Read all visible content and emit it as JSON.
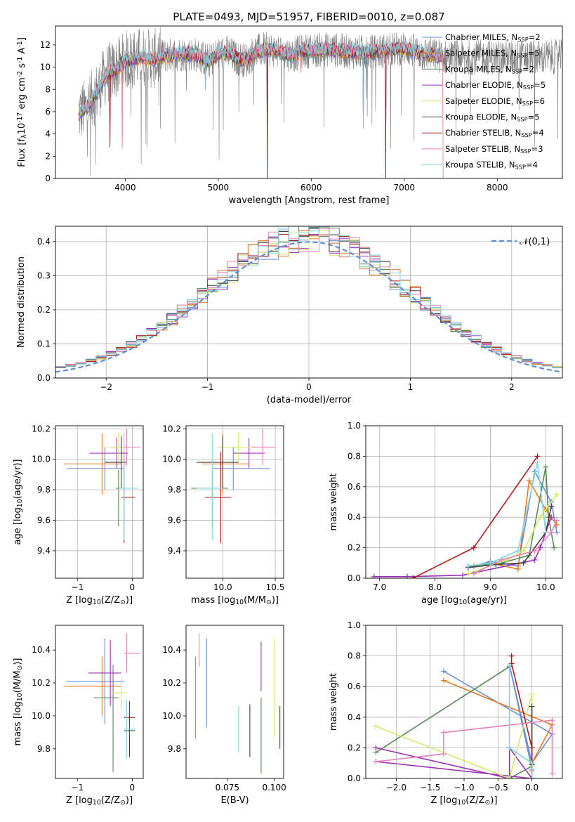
{
  "figure": {
    "title": "PLATE=0493, MJD=51957, FIBERID=0010, z=0.087"
  },
  "series": [
    {
      "name": "Chabrier MILES, N$_{SSP}$=2",
      "color": "#6a8fd8"
    },
    {
      "name": "Salpeter MILES, N$_{SSP}$=5",
      "color": "#e8781e"
    },
    {
      "name": "Kroupa MILES, N$_{SSP}$=2",
      "color": "#5a8a5a"
    },
    {
      "name": "Chabrier ELODIE, N$_{SSP}$=5",
      "color": "#9b30b8"
    },
    {
      "name": "Salpeter ELODIE, N$_{SSP}$=6",
      "color": "#d4e86a"
    },
    {
      "name": "Kroupa ELODIE, N$_{SSP}$=5",
      "color": "#404040"
    },
    {
      "name": "Chabrier STELIB, N$_{SSP}$=4",
      "color": "#b01c1c"
    },
    {
      "name": "Salpeter STELIB, N$_{SSP}$=3",
      "color": "#e880b8"
    },
    {
      "name": "Kroupa STELIB, N$_{SSP}$=4",
      "color": "#80d8e0"
    }
  ],
  "chart_data": [
    {
      "id": "spectrum",
      "type": "line",
      "title": "PLATE=0493, MJD=51957, FIBERID=0010, z=0.087",
      "xlabel": "wavelength [Angstrom, rest frame]",
      "ylabel": "Flux [f$_\\lambda$10$^{-17}$ erg cm$^{-2}$ s$^{-1}$ A$^{-1}$]",
      "xlim": [
        3250,
        8700
      ],
      "ylim": [
        0,
        13.7
      ],
      "xticks": [
        4000,
        5000,
        6000,
        7000,
        8000
      ],
      "yticks": [
        0,
        2,
        4,
        6,
        8,
        10,
        12
      ],
      "legend": {
        "placement": "right",
        "entries": [
          "Chabrier MILES, N$_{SSP}$=2",
          "Salpeter MILES, N$_{SSP}$=5",
          "Kroupa MILES, N$_{SSP}$=2",
          "Chabrier ELODIE, N$_{SSP}$=5",
          "Salpeter ELODIE, N$_{SSP}$=6",
          "Kroupa ELODIE, N$_{SSP}$=5",
          "Chabrier STELIB, N$_{SSP}$=4",
          "Salpeter STELIB, N$_{SSP}$=3",
          "Kroupa STELIB, N$_{SSP}$=4"
        ]
      },
      "observed_color": "#808080",
      "model_envelope": {
        "x": [
          3500,
          3600,
          3700,
          3800,
          3900,
          4000,
          4100,
          4200,
          4300,
          4400,
          4500,
          4600,
          4700,
          4800,
          4900,
          5000,
          5100,
          5200,
          5300,
          5400,
          5500,
          5600,
          5700,
          5800,
          5900,
          6000,
          6200,
          6400,
          6600,
          6800,
          7000,
          7200,
          7400,
          7420
        ],
        "y": [
          5.8,
          6.5,
          7.8,
          9.4,
          9.8,
          10.6,
          10.8,
          10.9,
          10.7,
          11.0,
          11.1,
          11.2,
          11.2,
          11.0,
          10.5,
          11.2,
          11.3,
          10.8,
          10.6,
          11.4,
          11.6,
          11.5,
          11.3,
          11.1,
          11.4,
          11.5,
          11.6,
          11.4,
          11.3,
          11.5,
          11.7,
          11.2,
          11.0,
          10.9
        ]
      },
      "spikes": {
        "x": [
          3835,
          3970,
          4860,
          5530,
          5890,
          6560,
          6800,
          7420
        ],
        "y": [
          2.8,
          2.7,
          8.0,
          0,
          9.5,
          4.5,
          0,
          0
        ]
      }
    },
    {
      "id": "residuals",
      "type": "bar",
      "xlabel": "(data-model)/error",
      "ylabel": "Normed distribution",
      "xlim": [
        -2.5,
        2.5
      ],
      "ylim": [
        0,
        0.445
      ],
      "xticks": [
        -2,
        -1,
        0,
        1,
        2
      ],
      "yticks": [
        0.0,
        0.1,
        0.2,
        0.3,
        0.4
      ],
      "legend": {
        "placement": "top-right",
        "entries": [
          "$\\mathcal{N}(0,1)$"
        ]
      },
      "gaussian": {
        "mean": 0,
        "sigma": 1,
        "color": "#5b8fd6"
      },
      "bin_width": 0.1
    },
    {
      "id": "z-age",
      "type": "scatter",
      "xlabel": "Z [log$_{10}$(Z/Z$_\\odot$)]",
      "ylabel": "age  [log$_{10}$(age/yr)]",
      "xlim": [
        -1.4,
        0.2
      ],
      "ylim": [
        9.22,
        10.22
      ],
      "xticks": [
        -1,
        0
      ],
      "yticks": [
        9.4,
        9.6,
        9.8,
        10.0,
        10.2
      ],
      "points": [
        {
          "series": 0,
          "x": -0.5,
          "xerr": [
            0.7,
            0.35
          ],
          "y": 9.94,
          "yerr": [
            0.14,
            0.14
          ]
        },
        {
          "series": 1,
          "x": -0.55,
          "xerr": [
            0.7,
            0.35
          ],
          "y": 9.97,
          "yerr": [
            0.2,
            0.2
          ]
        },
        {
          "series": 2,
          "x": -0.25,
          "xerr": [
            0.05,
            0.05
          ],
          "y": 9.81,
          "yerr": [
            0.25,
            0.12
          ]
        },
        {
          "series": 3,
          "x": -0.28,
          "xerr": [
            0.5,
            0.2
          ],
          "y": 10.04,
          "yerr": [
            0.1,
            0.1
          ]
        },
        {
          "series": 4,
          "x": -0.25,
          "xerr": [
            0.2,
            0.15
          ],
          "y": 10.08,
          "yerr": [
            0.1,
            0.1
          ]
        },
        {
          "series": 5,
          "x": -0.2,
          "xerr": [
            0.3,
            0.1
          ],
          "y": 9.98,
          "yerr": [
            0.17,
            0.17
          ]
        },
        {
          "series": 6,
          "x": -0.15,
          "xerr": [
            0.05,
            0.2
          ],
          "y": 9.75,
          "yerr": [
            0.3,
            0.3
          ]
        },
        {
          "series": 7,
          "x": -0.1,
          "xerr": [
            0.05,
            0.25
          ],
          "y": 10.08,
          "yerr": [
            0.12,
            0.12
          ]
        },
        {
          "series": 8,
          "x": -0.15,
          "xerr": [
            0.1,
            0.25
          ],
          "y": 9.81,
          "yerr": [
            0.34,
            0.36
          ]
        }
      ]
    },
    {
      "id": "mass-age",
      "type": "scatter",
      "xlabel": "mass [log$_{10}$(M/M$_\\odot$)]",
      "ylabel": "",
      "xlim": [
        9.65,
        10.58
      ],
      "ylim": [
        9.22,
        10.22
      ],
      "xticks": [
        10.0,
        10.5
      ],
      "yticks": [
        9.4,
        9.6,
        9.8,
        10.0,
        10.2
      ],
      "points": [
        {
          "series": 0,
          "x": 10.1,
          "xerr": [
            0.2,
            0.35
          ],
          "y": 9.94,
          "yerr": [
            0.14,
            0.14
          ]
        },
        {
          "series": 1,
          "x": 10.0,
          "xerr": [
            0.2,
            0.25
          ],
          "y": 9.97,
          "yerr": [
            0.2,
            0.2
          ]
        },
        {
          "series": 2,
          "x": 9.9,
          "xerr": [
            0.2,
            0.15
          ],
          "y": 9.81,
          "yerr": [
            0.25,
            0.12
          ]
        },
        {
          "series": 3,
          "x": 10.25,
          "xerr": [
            0.15,
            0.15
          ],
          "y": 10.04,
          "yerr": [
            0.1,
            0.1
          ]
        },
        {
          "series": 4,
          "x": 10.15,
          "xerr": [
            0.2,
            0.2
          ],
          "y": 10.08,
          "yerr": [
            0.1,
            0.1
          ]
        },
        {
          "series": 5,
          "x": 10.0,
          "xerr": [
            0.25,
            0.15
          ],
          "y": 9.98,
          "yerr": [
            0.17,
            0.17
          ]
        },
        {
          "series": 6,
          "x": 9.98,
          "xerr": [
            0.15,
            0.1
          ],
          "y": 9.75,
          "yerr": [
            0.3,
            0.3
          ]
        },
        {
          "series": 7,
          "x": 10.38,
          "xerr": [
            0.1,
            0.12
          ],
          "y": 10.08,
          "yerr": [
            0.12,
            0.12
          ]
        },
        {
          "series": 8,
          "x": 9.9,
          "xerr": [
            0.15,
            0.1
          ],
          "y": 9.81,
          "yerr": [
            0.34,
            0.36
          ]
        }
      ]
    },
    {
      "id": "age-weight",
      "type": "line",
      "xlabel": "age  [log$_{10}$(age/yr)]",
      "ylabel": "mass weight",
      "xlim": [
        6.75,
        10.3
      ],
      "ylim": [
        0,
        1.0
      ],
      "xticks": [
        7,
        8,
        9,
        10
      ],
      "yticks": [
        0.0,
        0.2,
        0.4,
        0.6,
        0.8,
        1.0
      ],
      "series": [
        {
          "series": 0,
          "x": [
            8.6,
            9.0,
            9.5,
            9.8,
            10.1,
            10.2
          ],
          "y": [
            0.07,
            0.11,
            0.08,
            0.7,
            0.5,
            0.3
          ]
        },
        {
          "series": 1,
          "x": [
            8.7,
            9.0,
            9.5,
            9.7,
            10.0,
            10.2
          ],
          "y": [
            0.08,
            0.1,
            0.06,
            0.64,
            0.45,
            0.35
          ]
        },
        {
          "series": 2,
          "x": [
            8.6,
            9.2,
            9.7,
            10.0,
            10.05,
            10.15
          ],
          "y": [
            0.08,
            0.1,
            0.15,
            0.73,
            0.4,
            0.2
          ]
        },
        {
          "series": 3,
          "x": [
            6.9,
            7.5,
            8.5,
            9.8,
            9.9,
            10.0,
            10.1
          ],
          "y": [
            0.01,
            0.01,
            0.02,
            0.12,
            0.2,
            0.3,
            0.4
          ]
        },
        {
          "series": 4,
          "x": [
            8.6,
            9.3,
            9.6,
            9.9,
            10.2
          ],
          "y": [
            0.03,
            0.12,
            0.18,
            0.4,
            0.55
          ]
        },
        {
          "series": 5,
          "x": [
            8.6,
            9.1,
            9.6,
            10.0,
            10.1
          ],
          "y": [
            0.07,
            0.09,
            0.1,
            0.3,
            0.47
          ]
        },
        {
          "series": 6,
          "x": [
            7.6,
            8.7,
            9.85
          ],
          "y": [
            0.0,
            0.2,
            0.8
          ]
        },
        {
          "series": 7,
          "x": [
            8.7,
            9.2,
            9.8,
            10.1,
            10.2
          ],
          "y": [
            0.03,
            0.12,
            0.18,
            0.3,
            0.38
          ]
        },
        {
          "series": 8,
          "x": [
            8.6,
            9.0,
            9.5,
            9.85,
            10.0
          ],
          "y": [
            0.08,
            0.1,
            0.18,
            0.76,
            0.3
          ]
        }
      ]
    },
    {
      "id": "z-mass",
      "type": "scatter",
      "xlabel": "Z [log$_{10}$(Z/Z$_\\odot$)]",
      "ylabel": "mass [log$_{10}$(M/M$_\\odot$)]",
      "xlim": [
        -1.4,
        0.2
      ],
      "ylim": [
        9.62,
        10.55
      ],
      "xticks": [
        -1,
        0
      ],
      "yticks": [
        9.8,
        10.0,
        10.2,
        10.4
      ],
      "points": [
        {
          "series": 0,
          "x": -0.5,
          "xerr": [
            0.7,
            0.35
          ],
          "y": 10.21,
          "yerr": [
            0.26,
            0.26
          ]
        },
        {
          "series": 1,
          "x": -0.55,
          "xerr": [
            0.7,
            0.35
          ],
          "y": 10.18,
          "yerr": [
            0.18,
            0.18
          ]
        },
        {
          "series": 2,
          "x": -0.35,
          "xerr": [
            0.35,
            0.1
          ],
          "y": 10.11,
          "yerr": [
            0.45,
            0.2
          ]
        },
        {
          "series": 3,
          "x": -0.4,
          "xerr": [
            0.4,
            0.2
          ],
          "y": 10.26,
          "yerr": [
            0.2,
            0.2
          ]
        },
        {
          "series": 4,
          "x": -0.2,
          "xerr": [
            0.2,
            0.1
          ],
          "y": 10.14,
          "yerr": [
            0.1,
            0.1
          ]
        },
        {
          "series": 5,
          "x": -0.05,
          "xerr": [
            0.1,
            0.1
          ],
          "y": 9.91,
          "yerr": [
            0.16,
            0.16
          ]
        },
        {
          "series": 6,
          "x": -0.05,
          "xerr": [
            0.1,
            0.1
          ],
          "y": 9.99,
          "yerr": [
            0.1,
            0.1
          ]
        },
        {
          "series": 7,
          "x": -0.1,
          "xerr": [
            0.05,
            0.25
          ],
          "y": 10.38,
          "yerr": [
            0.12,
            0.12
          ]
        },
        {
          "series": 8,
          "x": -0.1,
          "xerr": [
            0.05,
            0.15
          ],
          "y": 9.92,
          "yerr": [
            0.18,
            0.18
          ]
        }
      ]
    },
    {
      "id": "ebv-mass",
      "type": "scatter",
      "xlabel": "E(B-V)",
      "ylabel": "",
      "xlim": [
        0.053,
        0.105
      ],
      "ylim": [
        9.62,
        10.55
      ],
      "xticks": [
        0.075,
        0.1
      ],
      "xtick_labels": [
        "0.075",
        "0.100"
      ],
      "yticks": [
        9.8,
        10.0,
        10.2,
        10.4
      ],
      "points": [
        {
          "series": 0,
          "x": 0.064,
          "y": 10.2,
          "yerr": [
            0.27,
            0.27
          ]
        },
        {
          "series": 1,
          "x": 0.058,
          "y": 10.11,
          "yerr": [
            0.25,
            0.25
          ]
        },
        {
          "series": 2,
          "x": 0.093,
          "y": 9.88,
          "yerr": [
            0.23,
            0.23
          ]
        },
        {
          "series": 3,
          "x": 0.093,
          "y": 10.3,
          "yerr": [
            0.15,
            0.15
          ]
        },
        {
          "series": 4,
          "x": 0.1,
          "y": 10.17,
          "yerr": [
            0.3,
            0.3
          ]
        },
        {
          "series": 5,
          "x": 0.087,
          "y": 9.91,
          "yerr": [
            0.16,
            0.16
          ]
        },
        {
          "series": 6,
          "x": 0.103,
          "y": 9.93,
          "yerr": [
            0.13,
            0.13
          ]
        },
        {
          "series": 7,
          "x": 0.06,
          "y": 10.4,
          "yerr": [
            0.1,
            0.1
          ]
        },
        {
          "series": 8,
          "x": 0.081,
          "y": 9.92,
          "yerr": [
            0.14,
            0.14
          ]
        }
      ]
    },
    {
      "id": "z-weight",
      "type": "line",
      "xlabel": "Z [log$_{10}$(Z/Z$_\\odot$)]",
      "ylabel": "mass weight",
      "xlim": [
        -2.45,
        0.45
      ],
      "ylim": [
        0,
        1.0
      ],
      "xticks": [
        -2.0,
        -1.5,
        -1.0,
        -0.5,
        0.0
      ],
      "yticks": [
        0.0,
        0.2,
        0.4,
        0.6,
        0.8,
        1.0
      ],
      "series": [
        {
          "series": 0,
          "x": [
            -1.3,
            0.3,
            0.0,
            -0.33,
            0.0
          ],
          "y": [
            0.7,
            0.29,
            0.1,
            0.74,
            0.06
          ]
        },
        {
          "series": 1,
          "x": [
            -1.3,
            0.3,
            0.0,
            0.0
          ],
          "y": [
            0.64,
            0.35,
            0.1,
            0.05
          ]
        },
        {
          "series": 2,
          "x": [
            -2.3,
            -0.33,
            -0.33,
            0.0
          ],
          "y": [
            0.17,
            0.73,
            0.0,
            0.08
          ]
        },
        {
          "series": 3,
          "x": [
            -2.3,
            -0.33,
            -0.33,
            0.0,
            -2.3
          ],
          "y": [
            0.2,
            0.0,
            0.2,
            0.0,
            0.11
          ]
        },
        {
          "series": 4,
          "x": [
            -2.3,
            -0.33,
            0.0,
            0.0
          ],
          "y": [
            0.34,
            0.0,
            0.55,
            0.08
          ]
        },
        {
          "series": 5,
          "x": [
            0.0,
            0.0,
            0.0
          ],
          "y": [
            0.47,
            0.09,
            0.0
          ]
        },
        {
          "series": 6,
          "x": [
            -0.3,
            -0.3,
            0.0,
            0.0
          ],
          "y": [
            0.8,
            0.75,
            0.2,
            0.0
          ]
        },
        {
          "series": 7,
          "x": [
            -2.3,
            -1.3,
            -1.3,
            0.3,
            0.3
          ],
          "y": [
            0.11,
            0.16,
            0.3,
            0.38,
            0.03
          ]
        },
        {
          "series": 8,
          "x": [
            -0.33,
            -0.33,
            0.0,
            0.0
          ],
          "y": [
            0.74,
            0.2,
            0.1,
            0.0
          ]
        }
      ]
    }
  ]
}
